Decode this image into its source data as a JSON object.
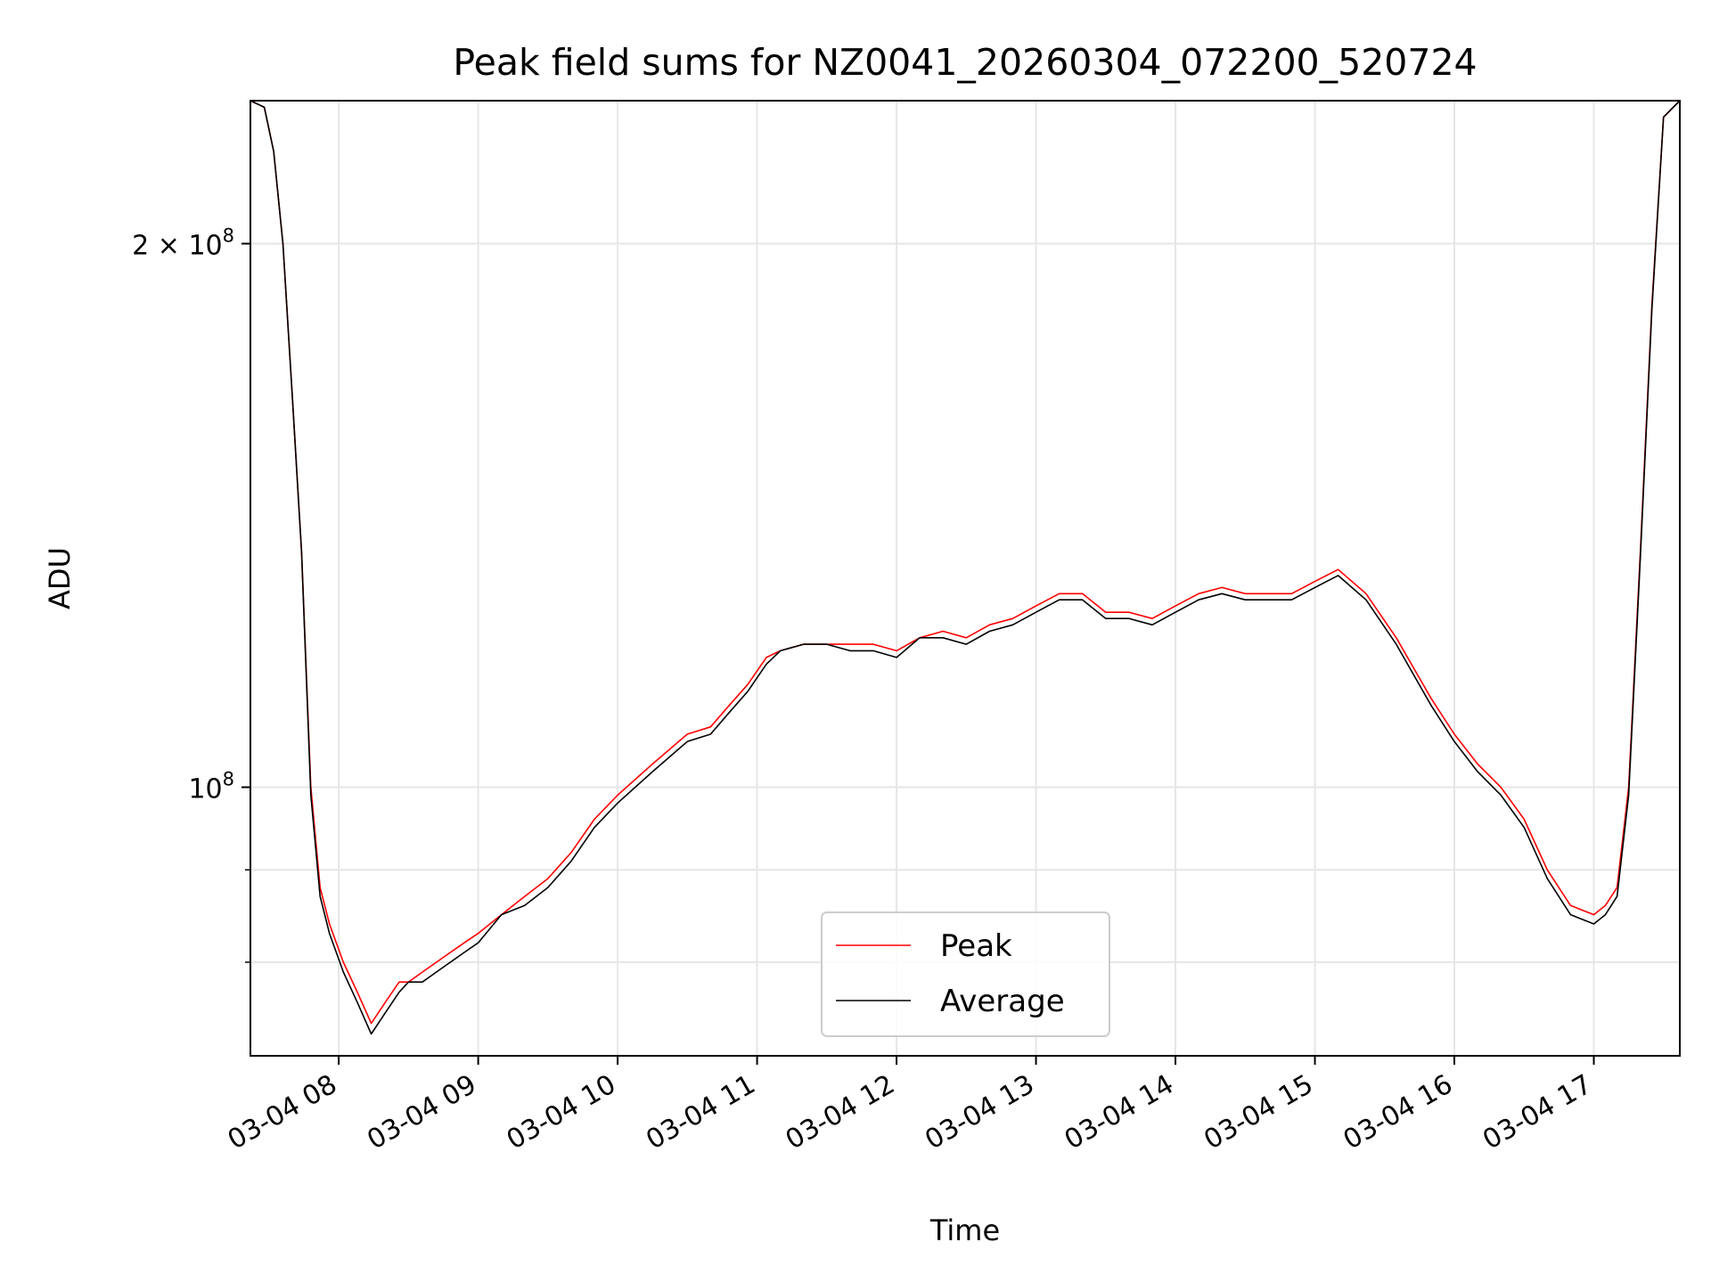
{
  "chart_data": {
    "type": "line",
    "title": "Peak field sums for NZ0041_20260304_072200_520724",
    "xlabel": "Time",
    "ylabel": "ADU",
    "y_scale": "log",
    "ylim": [
      71000000,
      240000000
    ],
    "xlim": [
      "2026-03-04 07:22",
      "2026-03-04 17:37"
    ],
    "grid": true,
    "legend_position": "lower center",
    "x_ticks": [
      "03-04 08",
      "03-04 09",
      "03-04 10",
      "03-04 11",
      "03-04 12",
      "03-04 13",
      "03-04 14",
      "03-04 15",
      "03-04 16",
      "03-04 17"
    ],
    "y_ticks": [
      {
        "value": 100000000,
        "mantissa": "",
        "base": "10",
        "exp": "8"
      },
      {
        "value": 200000000,
        "mantissa": "2 × ",
        "base": "10",
        "exp": "8"
      }
    ],
    "y_minor_ticks": [
      70000000,
      80000000,
      90000000,
      300000000
    ],
    "x": [
      "07:22",
      "07:28",
      "07:32",
      "07:36",
      "07:40",
      "07:44",
      "07:48",
      "07:52",
      "07:56",
      "08:02",
      "08:08",
      "08:14",
      "08:20",
      "08:26",
      "08:30",
      "08:36",
      "08:42",
      "08:48",
      "08:54",
      "09:00",
      "09:10",
      "09:20",
      "09:30",
      "09:40",
      "09:50",
      "10:00",
      "10:15",
      "10:30",
      "10:40",
      "10:48",
      "10:56",
      "11:04",
      "11:10",
      "11:20",
      "11:30",
      "11:40",
      "11:50",
      "12:00",
      "12:10",
      "12:20",
      "12:30",
      "12:40",
      "12:50",
      "13:00",
      "13:10",
      "13:20",
      "13:30",
      "13:40",
      "13:50",
      "14:00",
      "14:10",
      "14:20",
      "14:30",
      "14:40",
      "14:50",
      "15:00",
      "15:10",
      "15:22",
      "15:35",
      "15:50",
      "16:00",
      "16:10",
      "16:20",
      "16:30",
      "16:40",
      "16:50",
      "17:00",
      "17:05",
      "17:10",
      "17:15",
      "17:20",
      "17:25",
      "17:30",
      "17:37"
    ],
    "series": [
      {
        "name": "Peak",
        "color": "#ff0000",
        "values": [
          240,
          238,
          225,
          200,
          165,
          135,
          100,
          88,
          84,
          80,
          77,
          74,
          76,
          78,
          78,
          79,
          80,
          81,
          82,
          83,
          85,
          87,
          89,
          92,
          96,
          99,
          103,
          107,
          108,
          111,
          114,
          118,
          119,
          120,
          120,
          120,
          120,
          119,
          121,
          122,
          121,
          123,
          124,
          126,
          128,
          128,
          125,
          125,
          124,
          126,
          128,
          129,
          128,
          128,
          128,
          130,
          132,
          128,
          121,
          112,
          107,
          103,
          100,
          96,
          90,
          86,
          85,
          86,
          88,
          100,
          135,
          185,
          235,
          240
        ]
      },
      {
        "name": "Average",
        "color": "#000000",
        "values": [
          240,
          238,
          225,
          200,
          165,
          135,
          99,
          87,
          83,
          79,
          76,
          73,
          75,
          77,
          78,
          78,
          79,
          80,
          81,
          82,
          85,
          86,
          88,
          91,
          95,
          98,
          102,
          106,
          107,
          110,
          113,
          117,
          119,
          120,
          120,
          119,
          119,
          118,
          121,
          121,
          120,
          122,
          123,
          125,
          127,
          127,
          124,
          124,
          123,
          125,
          127,
          128,
          127,
          127,
          127,
          129,
          131,
          127,
          120,
          111,
          106,
          102,
          99,
          95,
          89,
          85,
          84,
          85,
          87,
          99,
          134,
          184,
          235,
          240
        ]
      }
    ]
  }
}
